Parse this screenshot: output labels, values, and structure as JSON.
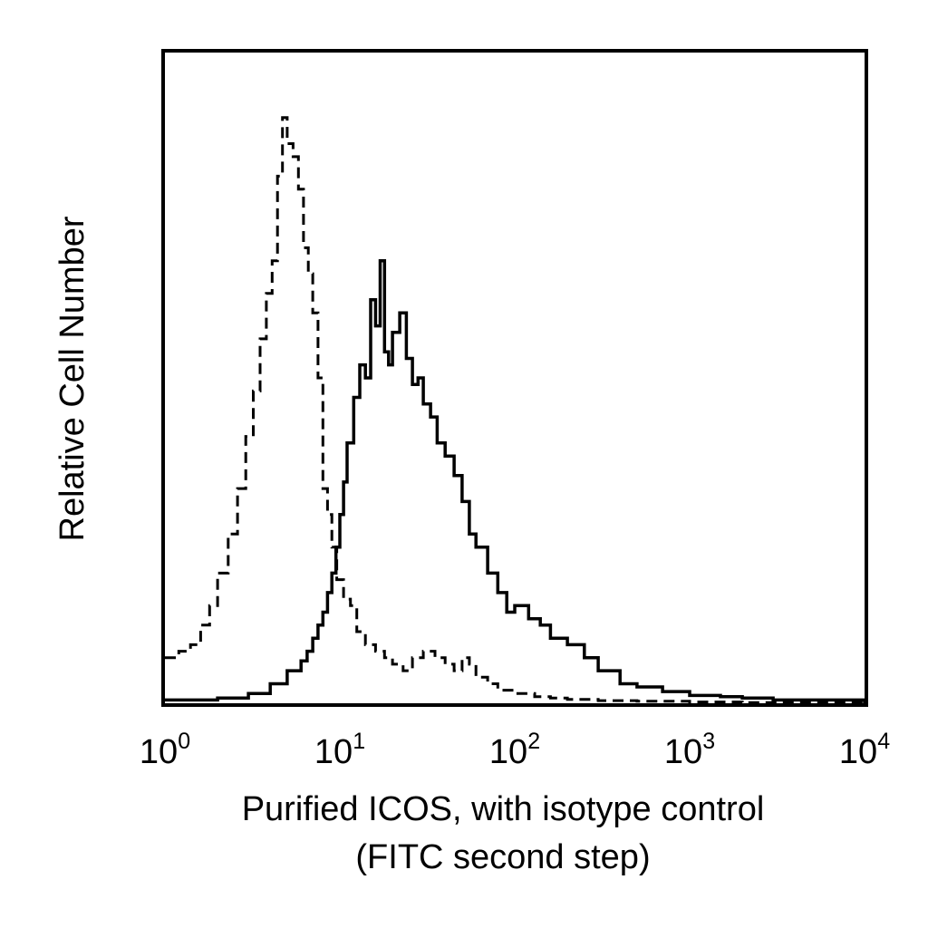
{
  "chart_data": {
    "type": "line",
    "title": "",
    "xlabel": "Purified ICOS, with isotype control",
    "xlabel_line2": "(FITC second step)",
    "ylabel": "Relative Cell Number",
    "x_scale": "log",
    "xlim": [
      1,
      10000
    ],
    "ylim": [
      0,
      100
    ],
    "grid": false,
    "legend": "none",
    "x_ticks": [
      {
        "base": "10",
        "exp": "0",
        "value": 1
      },
      {
        "base": "10",
        "exp": "1",
        "value": 10
      },
      {
        "base": "10",
        "exp": "2",
        "value": 100
      },
      {
        "base": "10",
        "exp": "3",
        "value": 1000
      },
      {
        "base": "10",
        "exp": "4",
        "value": 10000
      }
    ],
    "series": [
      {
        "style": "dashed",
        "x": [
          1.0,
          1.2,
          1.4,
          1.6,
          1.8,
          2.0,
          2.3,
          2.6,
          2.9,
          3.2,
          3.5,
          3.8,
          4.1,
          4.4,
          4.7,
          5.0,
          5.4,
          5.8,
          6.2,
          6.6,
          7.0,
          7.5,
          8.0,
          8.5,
          9.0,
          9.6,
          10.5,
          11.5,
          12.5,
          14,
          16,
          18,
          20,
          23,
          26,
          30,
          35,
          40,
          45,
          50,
          55,
          60,
          70,
          80,
          90,
          100,
          130,
          160,
          200,
          300,
          500,
          1000,
          2000,
          10000
        ],
        "y": [
          7,
          8,
          9,
          12,
          15,
          20,
          26,
          33,
          41,
          48,
          56,
          63,
          68,
          81,
          90,
          86,
          84,
          79,
          70,
          66,
          60,
          50,
          33,
          29,
          24,
          19,
          16,
          15,
          11,
          9,
          8,
          7,
          6,
          5,
          7,
          8,
          7,
          6,
          5,
          7,
          6,
          4,
          3,
          2,
          2,
          1.5,
          1,
          0.8,
          0.6,
          0.4,
          0.3,
          0.2,
          0.1,
          0
        ]
      },
      {
        "style": "solid",
        "x": [
          1.0,
          2.0,
          3.0,
          4.0,
          5.0,
          6.0,
          6.5,
          7.0,
          7.5,
          8.0,
          8.5,
          9.0,
          9.5,
          10.0,
          10.5,
          11.0,
          12.0,
          13.0,
          14.0,
          15.0,
          16.0,
          17.0,
          18.0,
          19.0,
          20.0,
          22.0,
          24.0,
          26.0,
          28.0,
          30.0,
          33.0,
          36.0,
          40.0,
          45.0,
          50.0,
          55.0,
          60.0,
          70.0,
          80.0,
          90.0,
          100,
          120,
          140,
          160,
          200,
          250,
          300,
          400,
          500,
          700,
          1000,
          1500,
          2000,
          3000,
          10000
        ],
        "y": [
          0.5,
          0.8,
          1.5,
          3,
          5,
          6.5,
          8,
          10,
          12,
          14,
          17,
          20,
          24,
          29,
          34,
          40,
          47,
          52,
          50,
          62,
          58,
          68,
          54,
          52,
          57,
          60,
          53,
          49,
          50,
          46,
          44,
          40,
          38,
          35,
          31,
          26,
          24,
          20,
          17,
          14,
          15,
          13,
          12,
          10,
          9,
          7,
          5,
          3,
          2.5,
          1.8,
          1.2,
          1,
          0.8,
          0.5,
          0
        ]
      }
    ]
  }
}
